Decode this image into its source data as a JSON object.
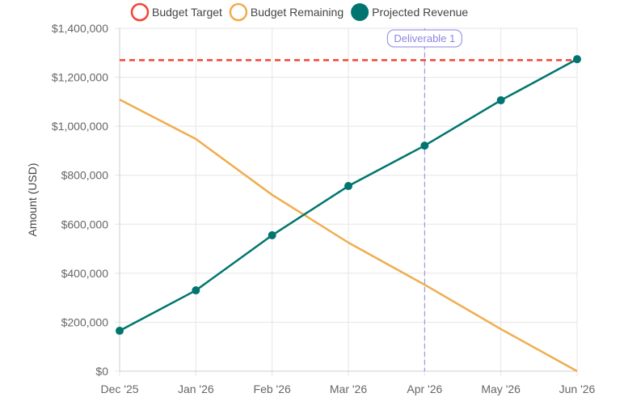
{
  "chart_data": {
    "type": "line",
    "title": "",
    "xlabel": "",
    "ylabel": "Amount (USD)",
    "categories": [
      "Dec '25",
      "Jan '26",
      "Feb '26",
      "Mar '26",
      "Apr '26",
      "May '26",
      "Jun '26"
    ],
    "ylim": [
      0,
      1400000
    ],
    "yticks": [
      0,
      200000,
      400000,
      600000,
      800000,
      1000000,
      1200000,
      1400000
    ],
    "ytick_labels": [
      "$0",
      "$200,000",
      "$400,000",
      "$600,000",
      "$800,000",
      "$1,000,000",
      "$1,200,000",
      "$1,400,000"
    ],
    "grid": true,
    "legend_position": "top",
    "series": [
      {
        "name": "Budget Target",
        "color": "#f44336",
        "style": "dashed",
        "constant": 1270000
      },
      {
        "name": "Budget Remaining",
        "color": "#f0ad4e",
        "style": "solid",
        "values": [
          1109000,
          948000,
          720000,
          525000,
          353000,
          172000,
          0
        ]
      },
      {
        "name": "Projected Revenue",
        "color": "#00756f",
        "style": "solid-markers",
        "values": [
          165000,
          330000,
          555000,
          756000,
          921000,
          1106000,
          1274000
        ]
      }
    ],
    "annotations": [
      {
        "label": "Deliverable 1",
        "x": "Apr '26",
        "color": "#8a86e0"
      }
    ]
  }
}
